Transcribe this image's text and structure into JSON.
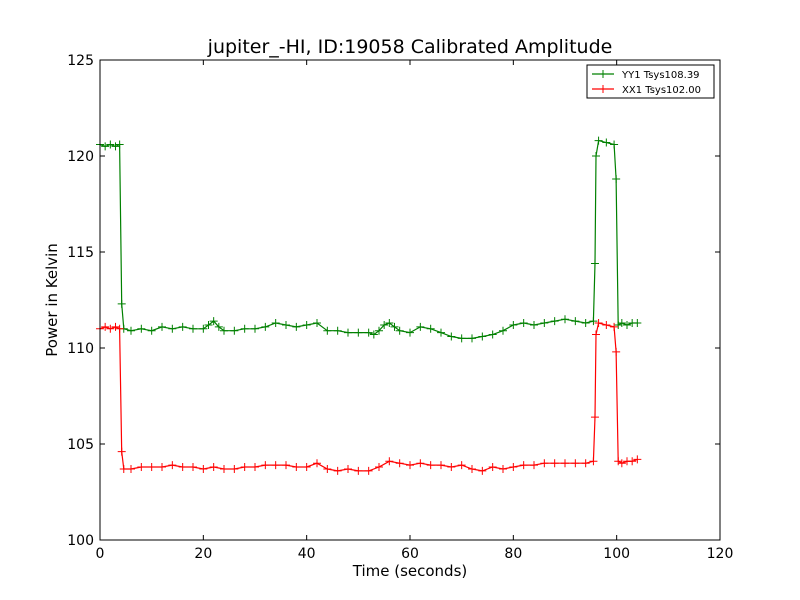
{
  "chart_data": {
    "type": "line",
    "title": "jupiter_-HI, ID:19058 Calibrated Amplitude",
    "xlabel": "Time (seconds)",
    "ylabel": "Power in Kelvin",
    "xlim": [
      0,
      120
    ],
    "ylim": [
      100,
      125
    ],
    "xticks": [
      "0",
      "20",
      "40",
      "60",
      "80",
      "100",
      "120"
    ],
    "yticks": [
      "100",
      "105",
      "110",
      "115",
      "120",
      "125"
    ],
    "grid": false,
    "legend_position": "top-right",
    "marker": "plus",
    "series": [
      {
        "name": "YY1 Tsys108.39",
        "color": "#008000",
        "points": [
          [
            0,
            120.6
          ],
          [
            1,
            120.5
          ],
          [
            2,
            120.6
          ],
          [
            3,
            120.5
          ],
          [
            3.8,
            120.6
          ],
          [
            4.2,
            112.3
          ],
          [
            4.6,
            111.0
          ],
          [
            6,
            110.9
          ],
          [
            8,
            111.0
          ],
          [
            10,
            110.9
          ],
          [
            12,
            111.1
          ],
          [
            14,
            111.0
          ],
          [
            16,
            111.1
          ],
          [
            18,
            111.0
          ],
          [
            20,
            111.0
          ],
          [
            21,
            111.2
          ],
          [
            22,
            111.4
          ],
          [
            23,
            111.1
          ],
          [
            24,
            110.9
          ],
          [
            26,
            110.9
          ],
          [
            28,
            111.0
          ],
          [
            30,
            111.0
          ],
          [
            32,
            111.1
          ],
          [
            34,
            111.3
          ],
          [
            36,
            111.2
          ],
          [
            38,
            111.1
          ],
          [
            40,
            111.2
          ],
          [
            42,
            111.3
          ],
          [
            44,
            110.9
          ],
          [
            46,
            110.9
          ],
          [
            48,
            110.8
          ],
          [
            50,
            110.8
          ],
          [
            52,
            110.8
          ],
          [
            53,
            110.7
          ],
          [
            54,
            110.9
          ],
          [
            55,
            111.2
          ],
          [
            56,
            111.3
          ],
          [
            57,
            111.1
          ],
          [
            58,
            110.9
          ],
          [
            60,
            110.8
          ],
          [
            62,
            111.1
          ],
          [
            64,
            111.0
          ],
          [
            66,
            110.8
          ],
          [
            68,
            110.6
          ],
          [
            70,
            110.5
          ],
          [
            72,
            110.5
          ],
          [
            74,
            110.6
          ],
          [
            76,
            110.7
          ],
          [
            78,
            110.9
          ],
          [
            80,
            111.2
          ],
          [
            82,
            111.3
          ],
          [
            84,
            111.2
          ],
          [
            86,
            111.3
          ],
          [
            88,
            111.4
          ],
          [
            90,
            111.5
          ],
          [
            92,
            111.4
          ],
          [
            94,
            111.3
          ],
          [
            95.5,
            111.4
          ],
          [
            95.8,
            114.4
          ],
          [
            96.0,
            120.0
          ],
          [
            96.5,
            120.8
          ],
          [
            98,
            120.7
          ],
          [
            99.5,
            120.6
          ],
          [
            99.9,
            118.8
          ],
          [
            100.3,
            111.2
          ],
          [
            101,
            111.3
          ],
          [
            102,
            111.2
          ],
          [
            103,
            111.3
          ],
          [
            104,
            111.3
          ]
        ]
      },
      {
        "name": "XX1 Tsys102.00",
        "color": "#ff0000",
        "points": [
          [
            0,
            111.0
          ],
          [
            1,
            111.1
          ],
          [
            2,
            111.0
          ],
          [
            3,
            111.1
          ],
          [
            3.8,
            111.0
          ],
          [
            4.2,
            104.6
          ],
          [
            4.6,
            103.7
          ],
          [
            6,
            103.7
          ],
          [
            8,
            103.8
          ],
          [
            10,
            103.8
          ],
          [
            12,
            103.8
          ],
          [
            14,
            103.9
          ],
          [
            16,
            103.8
          ],
          [
            18,
            103.8
          ],
          [
            20,
            103.7
          ],
          [
            22,
            103.8
          ],
          [
            24,
            103.7
          ],
          [
            26,
            103.7
          ],
          [
            28,
            103.8
          ],
          [
            30,
            103.8
          ],
          [
            32,
            103.9
          ],
          [
            34,
            103.9
          ],
          [
            36,
            103.9
          ],
          [
            38,
            103.8
          ],
          [
            40,
            103.8
          ],
          [
            42,
            104.0
          ],
          [
            44,
            103.7
          ],
          [
            46,
            103.6
          ],
          [
            48,
            103.7
          ],
          [
            50,
            103.6
          ],
          [
            52,
            103.6
          ],
          [
            54,
            103.8
          ],
          [
            56,
            104.1
          ],
          [
            58,
            104.0
          ],
          [
            60,
            103.9
          ],
          [
            62,
            104.0
          ],
          [
            64,
            103.9
          ],
          [
            66,
            103.9
          ],
          [
            68,
            103.8
          ],
          [
            70,
            103.9
          ],
          [
            72,
            103.7
          ],
          [
            74,
            103.6
          ],
          [
            76,
            103.8
          ],
          [
            78,
            103.7
          ],
          [
            80,
            103.8
          ],
          [
            82,
            103.9
          ],
          [
            84,
            103.9
          ],
          [
            86,
            104.0
          ],
          [
            88,
            104.0
          ],
          [
            90,
            104.0
          ],
          [
            92,
            104.0
          ],
          [
            94,
            104.0
          ],
          [
            95.5,
            104.1
          ],
          [
            95.8,
            106.4
          ],
          [
            96.0,
            110.7
          ],
          [
            96.5,
            111.3
          ],
          [
            98,
            111.2
          ],
          [
            99.5,
            111.1
          ],
          [
            99.9,
            109.8
          ],
          [
            100.3,
            104.1
          ],
          [
            101,
            104.0
          ],
          [
            102,
            104.1
          ],
          [
            103,
            104.1
          ],
          [
            104,
            104.2
          ]
        ]
      }
    ]
  }
}
